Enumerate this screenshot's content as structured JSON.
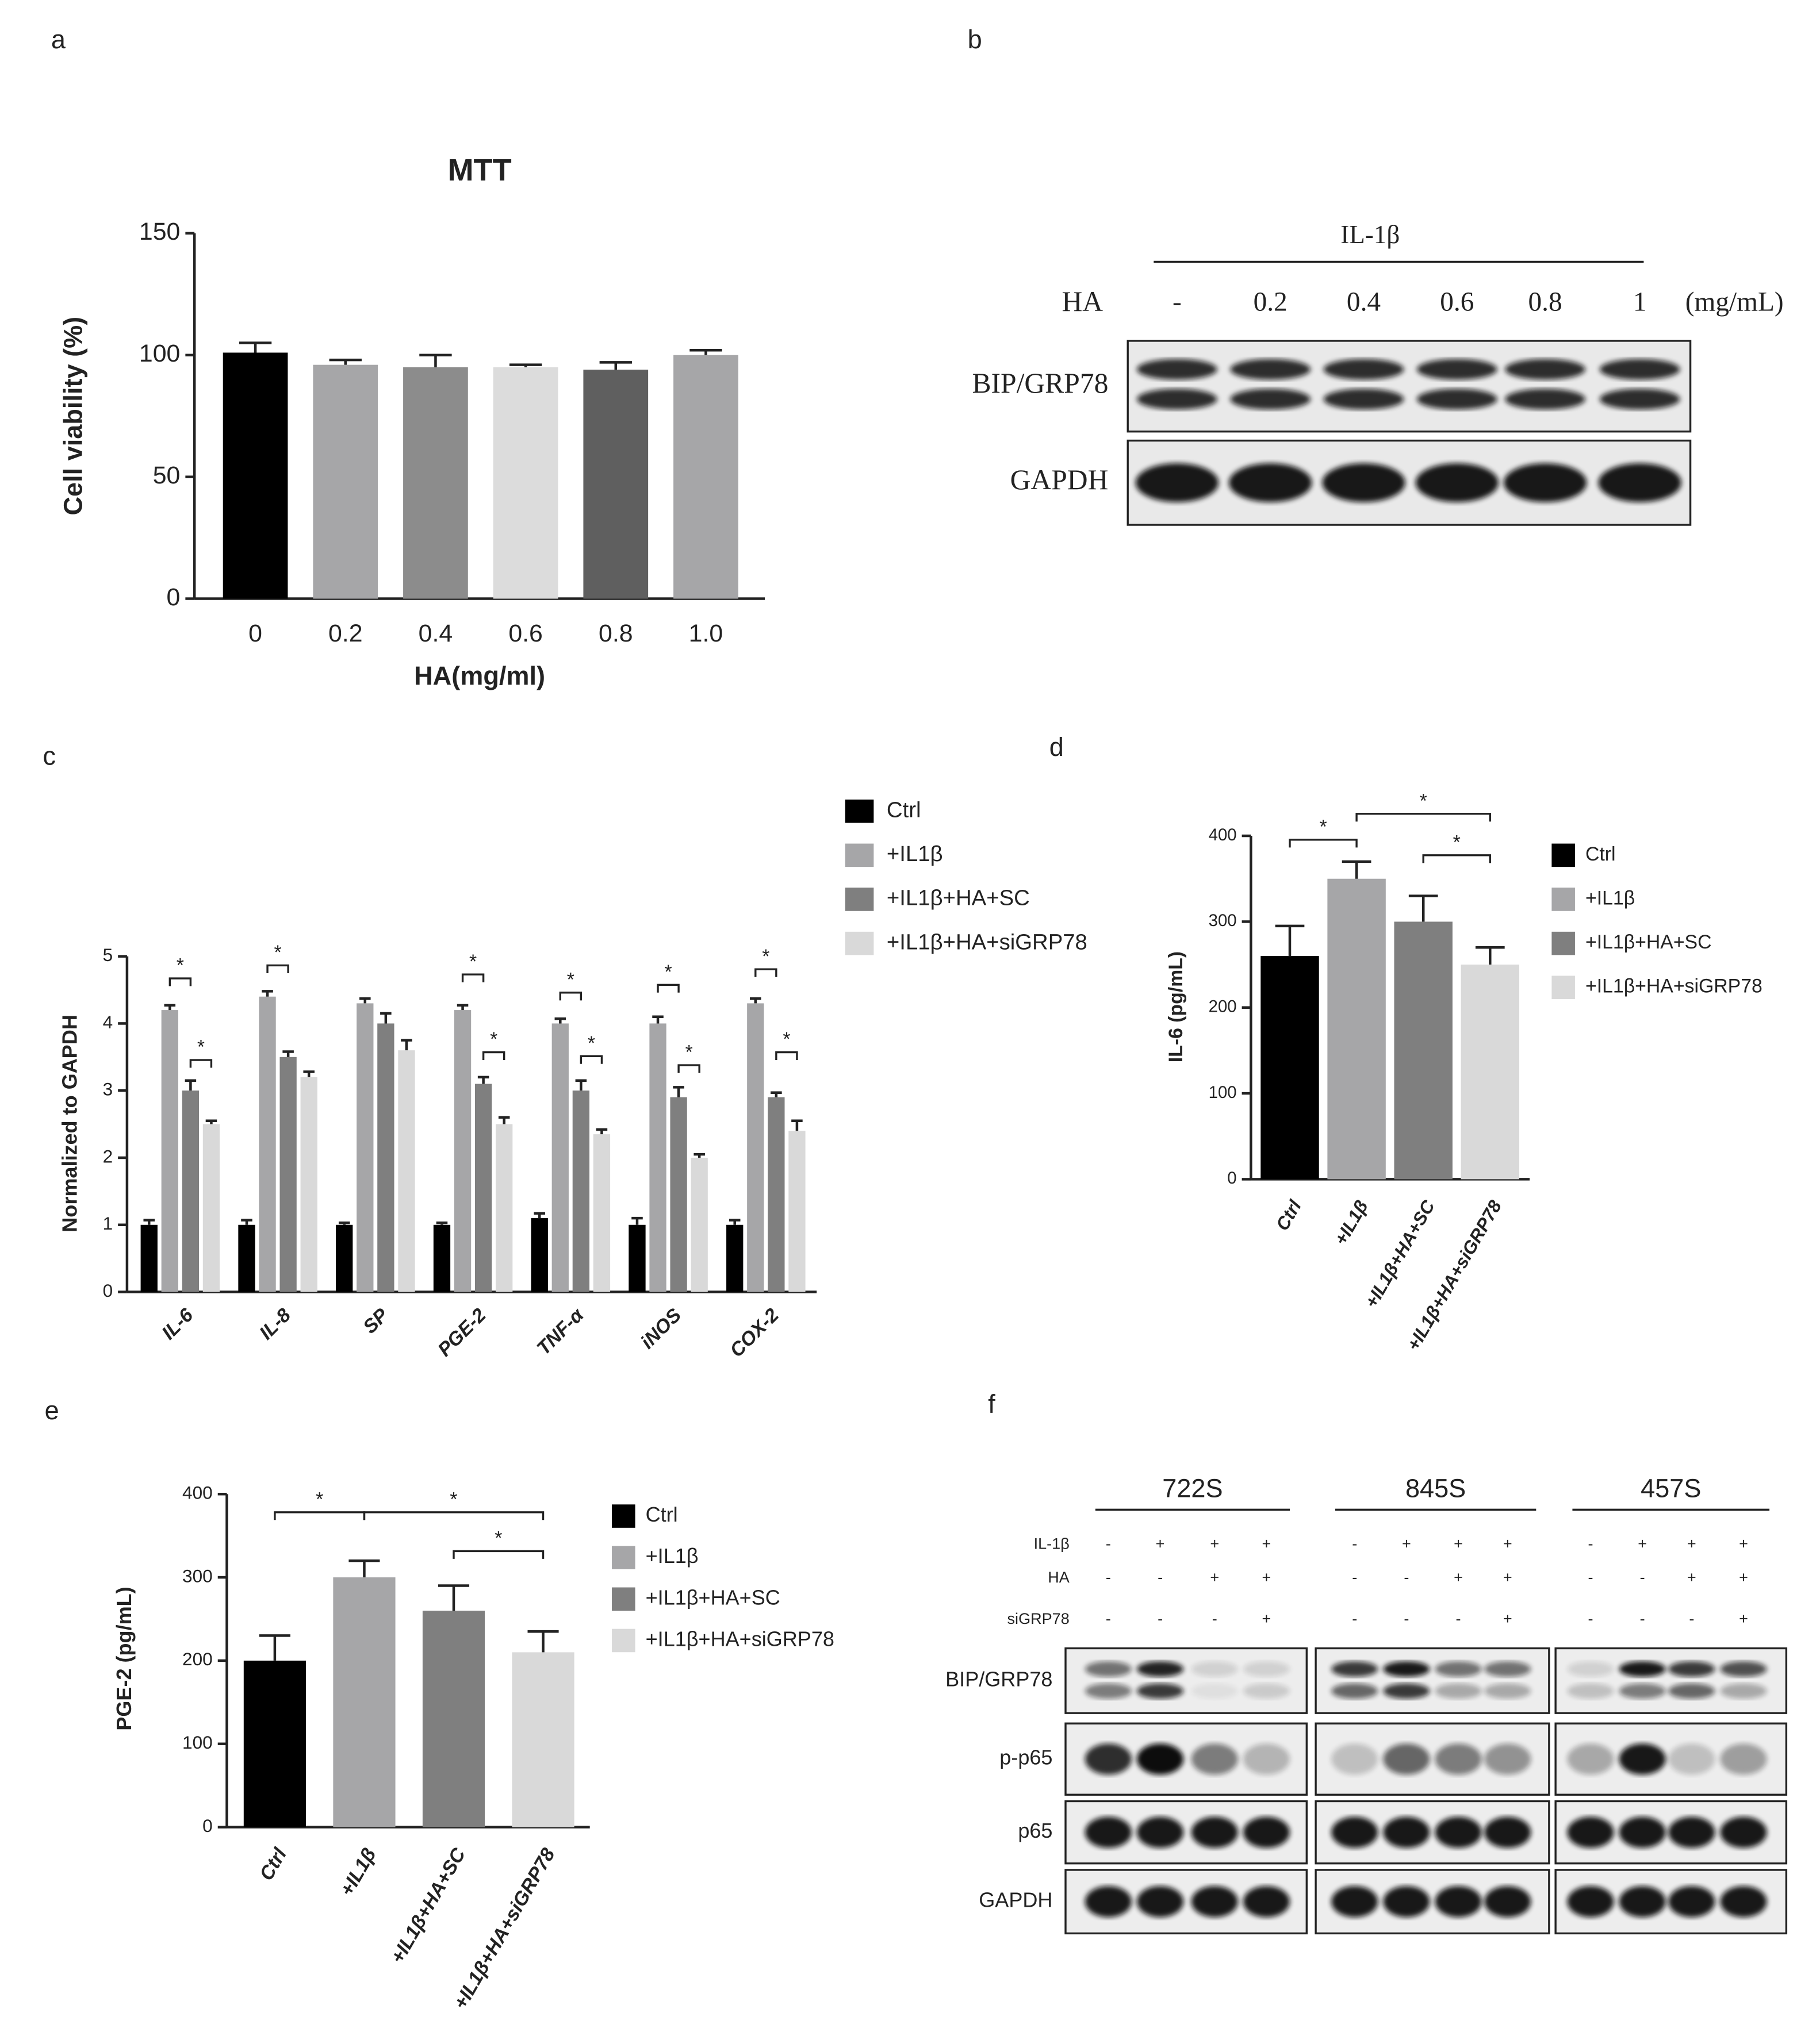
{
  "chart_data": [
    {
      "type": "bar",
      "panel": "a",
      "title": "MTT",
      "y_label": "Cell viability (%)",
      "x_label": "HA(mg/ml)",
      "categories": [
        "0",
        "0.2",
        "0.4",
        "0.6",
        "0.8",
        "1.0"
      ],
      "values": [
        101,
        96,
        95,
        95,
        94,
        100
      ],
      "errors": [
        4,
        2,
        5,
        1,
        3,
        2
      ],
      "colors": [
        "#000000",
        "#a6a6a8",
        "#8c8c8c",
        "#dcdcdc",
        "#5f5f5f",
        "#a6a6a8"
      ],
      "ylim": [
        0,
        150
      ],
      "yticks": [
        0,
        50,
        100,
        150
      ]
    },
    {
      "type": "grouped_bar",
      "panel": "c",
      "y_label": "Normalized to GAPDH",
      "categories": [
        "IL-6",
        "IL-8",
        "SP",
        "PGE-2",
        "TNF-α",
        "iNOS",
        "COX-2"
      ],
      "series": [
        {
          "name": "Ctrl",
          "color": "#000000",
          "values": [
            1.0,
            1.0,
            1.0,
            1.0,
            1.1,
            1.0,
            1.0
          ],
          "errors": [
            0.07,
            0.07,
            0.03,
            0.03,
            0.07,
            0.1,
            0.07
          ]
        },
        {
          "name": "+IL1β",
          "color": "#a6a6a8",
          "values": [
            4.2,
            4.4,
            4.3,
            4.2,
            4.0,
            4.0,
            4.3
          ],
          "errors": [
            0.07,
            0.08,
            0.07,
            0.07,
            0.07,
            0.1,
            0.07
          ]
        },
        {
          "name": "+IL1β+HA+SC",
          "color": "#7f7f7f",
          "values": [
            3.0,
            3.5,
            4.0,
            3.1,
            3.0,
            2.9,
            2.9
          ],
          "errors": [
            0.15,
            0.08,
            0.15,
            0.1,
            0.15,
            0.15,
            0.07
          ]
        },
        {
          "name": "+IL1β+HA+siGRP78",
          "color": "#d9d9d9",
          "values": [
            2.5,
            3.2,
            3.6,
            2.5,
            2.35,
            2.0,
            2.4
          ],
          "errors": [
            0.05,
            0.08,
            0.15,
            0.1,
            0.07,
            0.05,
            0.15
          ]
        }
      ],
      "ylim": [
        0,
        5
      ],
      "yticks": [
        0,
        1,
        2,
        3,
        4,
        5
      ],
      "annotations": [
        "*",
        "*",
        "*",
        "*",
        "*",
        "*",
        "*",
        "*",
        "*",
        "*",
        "*"
      ]
    },
    {
      "type": "bar",
      "panel": "d",
      "y_label": "IL-6 (pg/mL)",
      "categories": [
        "Ctrl",
        "+IL1β",
        "+IL1β+HA+SC",
        "+IL1β+HA+siGRP78"
      ],
      "values": [
        260,
        350,
        300,
        250
      ],
      "errors": [
        35,
        20,
        30,
        20
      ],
      "colors": [
        "#000000",
        "#a6a6a8",
        "#7f7f7f",
        "#d9d9d9"
      ],
      "ylim": [
        0,
        400
      ],
      "yticks": [
        0,
        100,
        200,
        300,
        400
      ],
      "legend": true,
      "annotations": [
        "*",
        "*",
        "*"
      ]
    },
    {
      "type": "bar",
      "panel": "e",
      "y_label": "PGE-2 (pg/mL)",
      "categories": [
        "Ctrl",
        "+IL1β",
        "+IL1β+HA+SC",
        "+IL1β+HA+siGRP78"
      ],
      "values": [
        200,
        300,
        260,
        210
      ],
      "errors": [
        30,
        20,
        30,
        25
      ],
      "colors": [
        "#000000",
        "#a6a6a8",
        "#7f7f7f",
        "#d9d9d9"
      ],
      "ylim": [
        0,
        400
      ],
      "yticks": [
        0,
        100,
        200,
        300,
        400
      ],
      "legend": true,
      "annotations": [
        "*",
        "*",
        "*"
      ]
    }
  ],
  "blot_b": {
    "panel": "b",
    "treatment": "IL-1β",
    "dose_label": "HA",
    "doses": [
      "-",
      "0.2",
      "0.4",
      "0.6",
      "0.8",
      "1"
    ],
    "unit": "(mg/mL)",
    "rows": [
      "BIP/GRP78",
      "GAPDH"
    ]
  },
  "blot_f": {
    "panel": "f",
    "cell_lines": [
      "722S",
      "845S",
      "457S"
    ],
    "conditions": [
      {
        "label": "IL-1β",
        "signs": [
          "-",
          "+",
          "+",
          "+",
          "-",
          "+",
          "+",
          "+",
          "-",
          "+",
          "+",
          "+"
        ]
      },
      {
        "label": "HA",
        "signs": [
          "-",
          "-",
          "+",
          "+",
          "-",
          "-",
          "+",
          "+",
          "-",
          "-",
          "+",
          "+"
        ]
      },
      {
        "label": "siGRP78",
        "signs": [
          "-",
          "-",
          "-",
          "+",
          "-",
          "-",
          "-",
          "+",
          "-",
          "-",
          "-",
          "+"
        ]
      }
    ],
    "rows": [
      "BIP/GRP78",
      "p-p65",
      "p65",
      "GAPDH"
    ]
  }
}
